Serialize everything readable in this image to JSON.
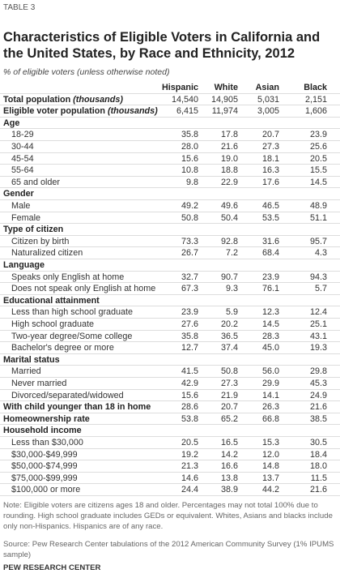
{
  "header": {
    "label": "TABLE 3",
    "title": "Characteristics of Eligible Voters in California and the United States, by Race and Ethnicity, 2012",
    "subtitle": "% of eligible voters (unless otherwise noted)"
  },
  "table": {
    "columns": [
      "Hispanic",
      "White",
      "Asian",
      "Black"
    ],
    "totals": [
      {
        "label": "Total population",
        "unit": "(thousands)",
        "values": [
          "14,540",
          "14,905",
          "5,031",
          "2,151"
        ]
      },
      {
        "label": "Eligible voter population",
        "unit": "(thousands)",
        "values": [
          "6,415",
          "11,974",
          "3,005",
          "1,606"
        ]
      }
    ],
    "sections": [
      {
        "heading": "Age",
        "rows": [
          {
            "label": "18-29",
            "values": [
              "35.8",
              "17.8",
              "20.7",
              "23.9"
            ]
          },
          {
            "label": "30-44",
            "values": [
              "28.0",
              "21.6",
              "27.3",
              "25.6"
            ]
          },
          {
            "label": "45-54",
            "values": [
              "15.6",
              "19.0",
              "18.1",
              "20.5"
            ]
          },
          {
            "label": "55-64",
            "values": [
              "10.8",
              "18.8",
              "16.3",
              "15.5"
            ]
          },
          {
            "label": "65 and older",
            "values": [
              "9.8",
              "22.9",
              "17.6",
              "14.5"
            ]
          }
        ]
      },
      {
        "heading": "Gender",
        "rows": [
          {
            "label": "Male",
            "values": [
              "49.2",
              "49.6",
              "46.5",
              "48.9"
            ]
          },
          {
            "label": "Female",
            "values": [
              "50.8",
              "50.4",
              "53.5",
              "51.1"
            ]
          }
        ]
      },
      {
        "heading": "Type of citizen",
        "rows": [
          {
            "label": "Citizen by birth",
            "values": [
              "73.3",
              "92.8",
              "31.6",
              "95.7"
            ]
          },
          {
            "label": "Naturalized citizen",
            "values": [
              "26.7",
              "7.2",
              "68.4",
              "4.3"
            ]
          }
        ]
      },
      {
        "heading": "Language",
        "rows": [
          {
            "label": "Speaks only English at home",
            "values": [
              "32.7",
              "90.7",
              "23.9",
              "94.3"
            ]
          },
          {
            "label": "Does not speak only English at home",
            "values": [
              "67.3",
              "9.3",
              "76.1",
              "5.7"
            ]
          }
        ]
      },
      {
        "heading": "Educational attainment",
        "rows": [
          {
            "label": "Less than high school graduate",
            "values": [
              "23.9",
              "5.9",
              "12.3",
              "12.4"
            ]
          },
          {
            "label": "High school graduate",
            "values": [
              "27.6",
              "20.2",
              "14.5",
              "25.1"
            ]
          },
          {
            "label": "Two-year degree/Some college",
            "values": [
              "35.8",
              "36.5",
              "28.3",
              "43.1"
            ]
          },
          {
            "label": "Bachelor's degree or more",
            "values": [
              "12.7",
              "37.4",
              "45.0",
              "19.3"
            ]
          }
        ]
      },
      {
        "heading": "Marital status",
        "rows": [
          {
            "label": "Married",
            "values": [
              "41.5",
              "50.8",
              "56.0",
              "29.8"
            ]
          },
          {
            "label": "Never married",
            "values": [
              "42.9",
              "27.3",
              "29.9",
              "45.3"
            ]
          },
          {
            "label": "Divorced/separated/widowed",
            "values": [
              "15.6",
              "21.9",
              "14.1",
              "24.9"
            ]
          }
        ]
      },
      {
        "heading": "With child younger than 18 in home",
        "values": [
          "28.6",
          "20.7",
          "26.3",
          "21.6"
        ]
      },
      {
        "heading": "Homeownership rate",
        "values": [
          "53.8",
          "65.2",
          "66.8",
          "38.5"
        ]
      },
      {
        "heading": "Household income",
        "rows": [
          {
            "label": "Less than $30,000",
            "values": [
              "20.5",
              "16.5",
              "15.3",
              "30.5"
            ]
          },
          {
            "label": "$30,000-$49,999",
            "values": [
              "19.2",
              "14.2",
              "12.0",
              "18.4"
            ]
          },
          {
            "label": "$50,000-$74,999",
            "values": [
              "21.3",
              "16.6",
              "14.8",
              "18.0"
            ]
          },
          {
            "label": "$75,000-$99,999",
            "values": [
              "14.6",
              "13.8",
              "13.7",
              "11.5"
            ]
          },
          {
            "label": "$100,000 or more",
            "values": [
              "24.4",
              "38.9",
              "44.2",
              "21.6"
            ]
          }
        ]
      }
    ]
  },
  "footer": {
    "note": "Note: Eligible voters are citizens ages 18 and older. Percentages may not total 100% due to rounding. High school graduate includes GEDs or equivalent. Whites, Asians and blacks include only non-Hispanics. Hispanics are of any race.",
    "source": "Source: Pew Research Center tabulations of the 2012 American Community Survey (1% IPUMS sample)",
    "brand": "PEW RESEARCH CENTER"
  }
}
